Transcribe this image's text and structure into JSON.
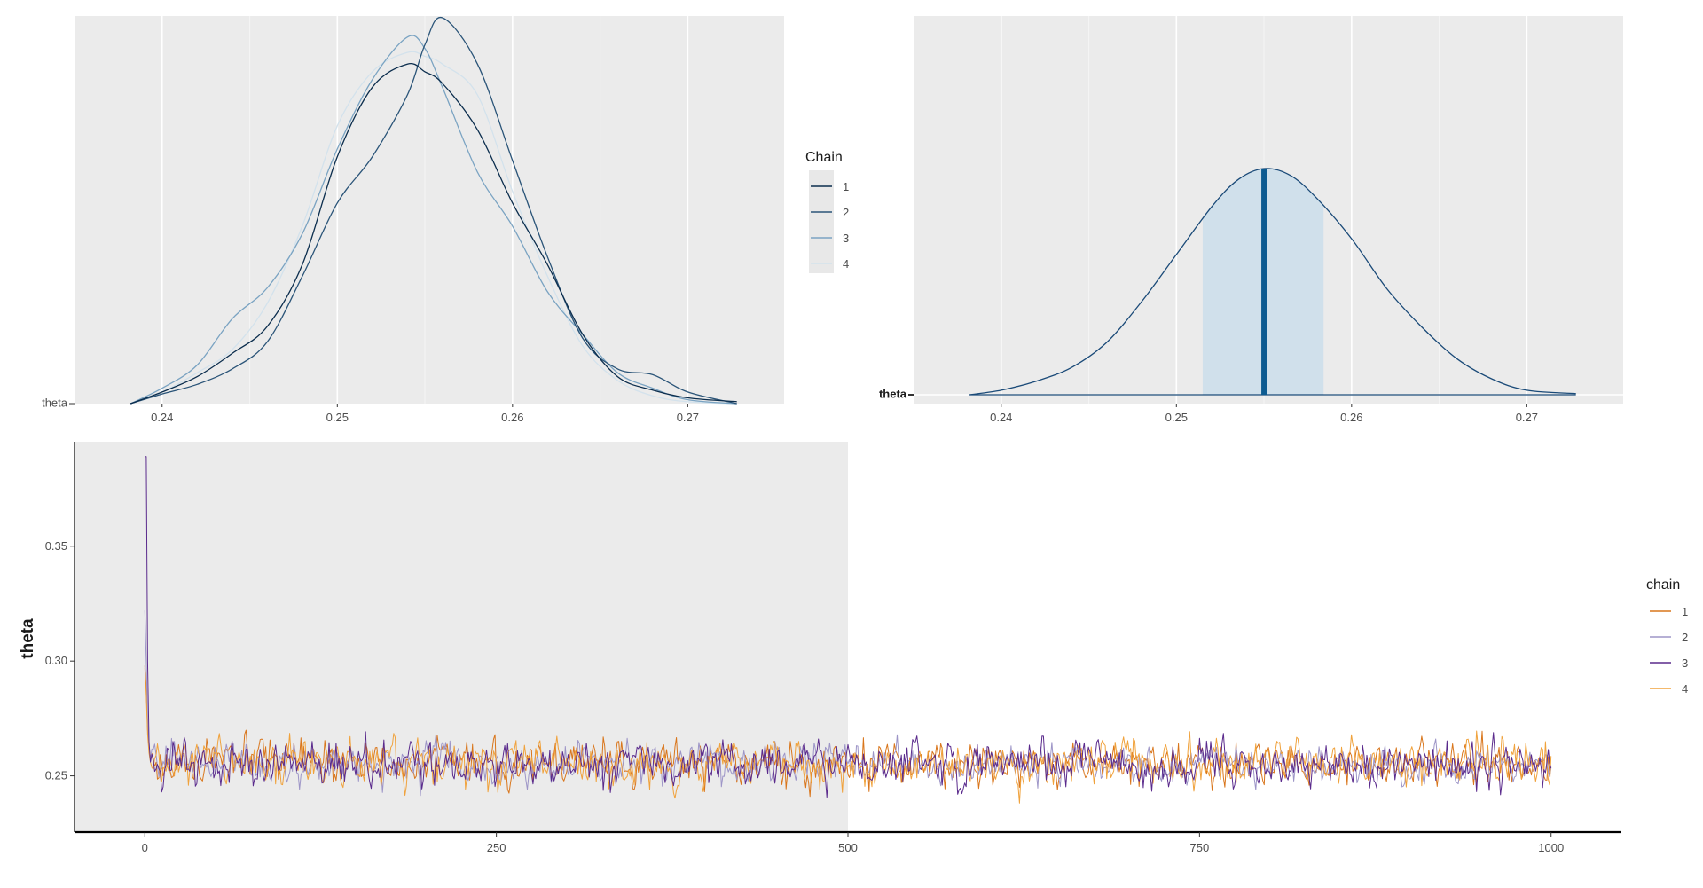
{
  "chart_data": [
    {
      "type": "area",
      "id": "dens",
      "ylabel": "",
      "xlim": [
        0.235,
        0.2755
      ],
      "xticks": [
        0.24,
        0.25,
        0.26,
        0.27
      ],
      "xtick_labels": [
        "0.24",
        "0.25",
        "0.26",
        "0.27"
      ],
      "ytick_label": "theta",
      "grid": true,
      "legend": {
        "title": "Chain",
        "entries": [
          "1",
          "2",
          "3",
          "4"
        ],
        "placement": "right"
      },
      "colors": [
        "#0b2d4d",
        "#2a5478",
        "#7aa3c2",
        "#d3e2ec"
      ],
      "x": [
        0.2382,
        0.24,
        0.242,
        0.244,
        0.246,
        0.248,
        0.25,
        0.252,
        0.254,
        0.255,
        0.256,
        0.258,
        0.26,
        0.262,
        0.264,
        0.266,
        0.268,
        0.27,
        0.2728
      ],
      "series": [
        {
          "name": "1",
          "values": [
            0.0,
            0.03,
            0.07,
            0.13,
            0.2,
            0.36,
            0.64,
            0.82,
            0.88,
            0.86,
            0.83,
            0.71,
            0.52,
            0.36,
            0.18,
            0.07,
            0.035,
            0.015,
            0.005
          ]
        },
        {
          "name": "2",
          "values": [
            0.0,
            0.025,
            0.05,
            0.09,
            0.16,
            0.33,
            0.52,
            0.64,
            0.8,
            0.93,
            1.0,
            0.88,
            0.63,
            0.38,
            0.17,
            0.09,
            0.075,
            0.03,
            0.0
          ]
        },
        {
          "name": "3",
          "values": [
            0.0,
            0.04,
            0.1,
            0.22,
            0.3,
            0.44,
            0.66,
            0.84,
            0.95,
            0.92,
            0.82,
            0.6,
            0.46,
            0.29,
            0.18,
            0.08,
            0.04,
            0.01,
            0.0
          ]
        },
        {
          "name": "4",
          "values": [
            0.0,
            0.03,
            0.08,
            0.14,
            0.26,
            0.46,
            0.72,
            0.86,
            0.91,
            0.9,
            0.88,
            0.8,
            0.55,
            0.33,
            0.15,
            0.06,
            0.02,
            0.005,
            0.0
          ]
        }
      ]
    },
    {
      "type": "area",
      "id": "areas",
      "xlim": [
        0.235,
        0.2755
      ],
      "xticks": [
        0.24,
        0.25,
        0.26,
        0.27
      ],
      "xtick_labels": [
        "0.24",
        "0.25",
        "0.26",
        "0.27"
      ],
      "ytick_label": "theta",
      "grid": true,
      "interval": [
        0.2515,
        0.2584
      ],
      "point": 0.255,
      "colors": {
        "line": "#1a4a78",
        "band": "#d0e0eb",
        "point": "#0d5b91"
      },
      "x": [
        0.2382,
        0.24,
        0.242,
        0.244,
        0.246,
        0.248,
        0.25,
        0.252,
        0.2535,
        0.255,
        0.2565,
        0.258,
        0.26,
        0.262,
        0.264,
        0.266,
        0.268,
        0.27,
        0.2728
      ],
      "values": [
        0.0,
        0.02,
        0.06,
        0.12,
        0.23,
        0.41,
        0.62,
        0.83,
        0.95,
        1.0,
        0.97,
        0.87,
        0.69,
        0.47,
        0.3,
        0.16,
        0.07,
        0.02,
        0.005
      ]
    },
    {
      "type": "line",
      "id": "trace",
      "ylabel": "theta",
      "xlim": [
        -50,
        1050
      ],
      "ylim": [
        0.2255,
        0.3955
      ],
      "xticks": [
        0,
        250,
        500,
        750,
        1000
      ],
      "xtick_labels": [
        "0",
        "250",
        "500",
        "750",
        "1000"
      ],
      "yticks": [
        0.25,
        0.3,
        0.35
      ],
      "ytick_labels": [
        "0.25",
        "0.30",
        "0.35"
      ],
      "warmup": [
        -50,
        500
      ],
      "n_iter": 1000,
      "legend": {
        "title": "chain",
        "entries": [
          "1",
          "2",
          "3",
          "4"
        ],
        "placement": "right"
      },
      "colors": [
        "#d9761c",
        "#9d95c7",
        "#5a2a8c",
        "#f0a23c"
      ],
      "series": [
        {
          "name": "1",
          "start": [
            0.298,
            0.288,
            0.27,
            0.262,
            0.258
          ],
          "mean": 0.2558,
          "sd": 0.0045
        },
        {
          "name": "2",
          "start": [
            0.322,
            0.3,
            0.275,
            0.262,
            0.257
          ],
          "mean": 0.2552,
          "sd": 0.004
        },
        {
          "name": "3",
          "start": [
            0.389,
            0.389,
            0.3,
            0.265,
            0.256
          ],
          "mean": 0.255,
          "sd": 0.0046
        },
        {
          "name": "4",
          "start": [
            0.297,
            0.285,
            0.268,
            0.26,
            0.256
          ],
          "mean": 0.2555,
          "sd": 0.005
        }
      ]
    }
  ]
}
